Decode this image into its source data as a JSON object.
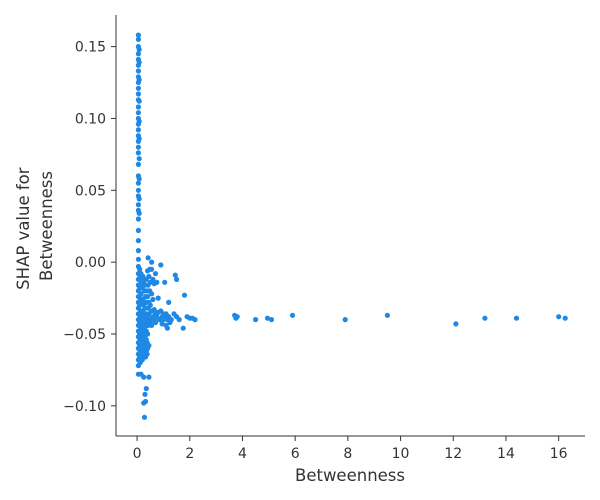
{
  "chart_data": {
    "type": "scatter",
    "title": "",
    "xlabel": "Betweenness",
    "ylabel_lines": [
      "SHAP value for",
      "Betweenness"
    ],
    "xlim": [
      -0.8,
      17.0
    ],
    "ylim": [
      -0.121,
      0.172
    ],
    "xticks": [
      0,
      2,
      4,
      6,
      8,
      10,
      12,
      14,
      16
    ],
    "yticks": [
      -0.1,
      -0.05,
      0.0,
      0.05,
      0.1,
      0.15
    ],
    "ytick_labels": [
      "−0.10",
      "−0.05",
      "0.00",
      "0.05",
      "0.10",
      "0.15"
    ],
    "grid": false,
    "spines": [
      "left",
      "bottom"
    ],
    "point_color": "#1e88e5",
    "points": [
      [
        0.05,
        0.158
      ],
      [
        0.05,
        0.155
      ],
      [
        0.05,
        0.15
      ],
      [
        0.05,
        0.145
      ],
      [
        0.05,
        0.141
      ],
      [
        0.05,
        0.137
      ],
      [
        0.05,
        0.133
      ],
      [
        0.05,
        0.129
      ],
      [
        0.05,
        0.125
      ],
      [
        0.05,
        0.121
      ],
      [
        0.05,
        0.117
      ],
      [
        0.05,
        0.113
      ],
      [
        0.05,
        0.108
      ],
      [
        0.05,
        0.104
      ],
      [
        0.05,
        0.1
      ],
      [
        0.05,
        0.096
      ],
      [
        0.05,
        0.092
      ],
      [
        0.05,
        0.088
      ],
      [
        0.05,
        0.084
      ],
      [
        0.05,
        0.08
      ],
      [
        0.05,
        0.076
      ],
      [
        0.05,
        0.068
      ],
      [
        0.05,
        0.06
      ],
      [
        0.05,
        0.055
      ],
      [
        0.05,
        0.05
      ],
      [
        0.05,
        0.046
      ],
      [
        0.05,
        0.04
      ],
      [
        0.05,
        0.036
      ],
      [
        0.05,
        0.03
      ],
      [
        0.05,
        0.022
      ],
      [
        0.05,
        0.015
      ],
      [
        0.05,
        0.008
      ],
      [
        0.08,
        0.148
      ],
      [
        0.08,
        0.139
      ],
      [
        0.08,
        0.127
      ],
      [
        0.08,
        0.112
      ],
      [
        0.08,
        0.098
      ],
      [
        0.08,
        0.086
      ],
      [
        0.08,
        0.072
      ],
      [
        0.08,
        0.058
      ],
      [
        0.08,
        0.044
      ],
      [
        0.08,
        0.034
      ],
      [
        0.05,
        0.002
      ],
      [
        0.05,
        -0.003
      ],
      [
        0.05,
        -0.008
      ],
      [
        0.05,
        -0.012
      ],
      [
        0.05,
        -0.016
      ],
      [
        0.05,
        -0.02
      ],
      [
        0.05,
        -0.024
      ],
      [
        0.05,
        -0.028
      ],
      [
        0.05,
        -0.032
      ],
      [
        0.05,
        -0.036
      ],
      [
        0.05,
        -0.04
      ],
      [
        0.05,
        -0.044
      ],
      [
        0.05,
        -0.048
      ],
      [
        0.05,
        -0.052
      ],
      [
        0.05,
        -0.056
      ],
      [
        0.05,
        -0.06
      ],
      [
        0.05,
        -0.064
      ],
      [
        0.05,
        -0.068
      ],
      [
        0.05,
        -0.072
      ],
      [
        0.05,
        -0.078
      ],
      [
        0.1,
        -0.005
      ],
      [
        0.1,
        -0.018
      ],
      [
        0.1,
        -0.03
      ],
      [
        0.1,
        -0.042
      ],
      [
        0.1,
        -0.05
      ],
      [
        0.1,
        -0.058
      ],
      [
        0.1,
        -0.066
      ],
      [
        0.12,
        -0.01
      ],
      [
        0.12,
        -0.025
      ],
      [
        0.12,
        -0.038
      ],
      [
        0.12,
        -0.054
      ],
      [
        0.12,
        -0.062
      ],
      [
        0.12,
        -0.07
      ],
      [
        0.15,
        -0.008
      ],
      [
        0.15,
        -0.015
      ],
      [
        0.15,
        -0.022
      ],
      [
        0.15,
        -0.034
      ],
      [
        0.15,
        -0.046
      ],
      [
        0.15,
        -0.052
      ],
      [
        0.15,
        -0.06
      ],
      [
        0.15,
        -0.067
      ],
      [
        0.15,
        -0.078
      ],
      [
        0.18,
        -0.012
      ],
      [
        0.18,
        -0.028
      ],
      [
        0.18,
        -0.036
      ],
      [
        0.18,
        -0.044
      ],
      [
        0.18,
        -0.056
      ],
      [
        0.18,
        -0.064
      ],
      [
        0.2,
        -0.018
      ],
      [
        0.2,
        -0.04
      ],
      [
        0.2,
        -0.048
      ],
      [
        0.2,
        -0.058
      ],
      [
        0.2,
        -0.068
      ],
      [
        0.22,
        -0.01
      ],
      [
        0.22,
        -0.026
      ],
      [
        0.22,
        -0.034
      ],
      [
        0.22,
        -0.054
      ],
      [
        0.22,
        -0.063
      ],
      [
        0.25,
        -0.014
      ],
      [
        0.25,
        -0.03
      ],
      [
        0.25,
        -0.042
      ],
      [
        0.25,
        -0.05
      ],
      [
        0.25,
        -0.06
      ],
      [
        0.25,
        -0.066
      ],
      [
        0.25,
        -0.08
      ],
      [
        0.25,
        -0.098
      ],
      [
        0.28,
        -0.02
      ],
      [
        0.28,
        -0.038
      ],
      [
        0.28,
        -0.046
      ],
      [
        0.28,
        -0.056
      ],
      [
        0.28,
        -0.108
      ],
      [
        0.3,
        -0.016
      ],
      [
        0.3,
        -0.032
      ],
      [
        0.3,
        -0.044
      ],
      [
        0.3,
        -0.052
      ],
      [
        0.3,
        -0.062
      ],
      [
        0.3,
        -0.092
      ],
      [
        0.32,
        -0.024
      ],
      [
        0.32,
        -0.04
      ],
      [
        0.32,
        -0.058
      ],
      [
        0.32,
        -0.066
      ],
      [
        0.32,
        -0.097
      ],
      [
        0.35,
        -0.012
      ],
      [
        0.35,
        -0.028
      ],
      [
        0.35,
        -0.036
      ],
      [
        0.35,
        -0.048
      ],
      [
        0.35,
        -0.054
      ],
      [
        0.35,
        -0.062
      ],
      [
        0.35,
        -0.088
      ],
      [
        0.38,
        -0.02
      ],
      [
        0.38,
        -0.042
      ],
      [
        0.38,
        -0.056
      ],
      [
        0.38,
        -0.064
      ],
      [
        0.4,
        -0.006
      ],
      [
        0.4,
        -0.024
      ],
      [
        0.4,
        -0.038
      ],
      [
        0.4,
        -0.05
      ],
      [
        0.4,
        -0.06
      ],
      [
        0.42,
        0.003
      ],
      [
        0.42,
        -0.016
      ],
      [
        0.42,
        -0.032
      ],
      [
        0.42,
        -0.044
      ],
      [
        0.45,
        -0.01
      ],
      [
        0.45,
        -0.028
      ],
      [
        0.45,
        -0.036
      ],
      [
        0.45,
        -0.058
      ],
      [
        0.45,
        -0.08
      ],
      [
        0.48,
        -0.005
      ],
      [
        0.48,
        -0.02
      ],
      [
        0.48,
        -0.04
      ],
      [
        0.5,
        -0.014
      ],
      [
        0.5,
        -0.03
      ],
      [
        0.5,
        -0.042
      ],
      [
        0.55,
        0.0
      ],
      [
        0.55,
        -0.005
      ],
      [
        0.55,
        -0.022
      ],
      [
        0.55,
        -0.034
      ],
      [
        0.55,
        -0.044
      ],
      [
        0.6,
        -0.012
      ],
      [
        0.6,
        -0.026
      ],
      [
        0.6,
        -0.038
      ],
      [
        0.65,
        -0.015
      ],
      [
        0.65,
        -0.033
      ],
      [
        0.65,
        -0.04
      ],
      [
        0.7,
        -0.008
      ],
      [
        0.7,
        -0.036
      ],
      [
        0.7,
        -0.042
      ],
      [
        0.75,
        -0.014
      ],
      [
        0.75,
        -0.038
      ],
      [
        0.8,
        -0.025
      ],
      [
        0.8,
        -0.035
      ],
      [
        0.85,
        -0.04
      ],
      [
        0.9,
        -0.002
      ],
      [
        0.9,
        -0.034
      ],
      [
        0.95,
        -0.038
      ],
      [
        0.95,
        -0.043
      ],
      [
        1.0,
        -0.036
      ],
      [
        1.0,
        -0.04
      ],
      [
        1.05,
        -0.014
      ],
      [
        1.05,
        -0.038
      ],
      [
        1.1,
        -0.044
      ],
      [
        1.1,
        -0.036
      ],
      [
        1.15,
        -0.04
      ],
      [
        1.15,
        -0.046
      ],
      [
        1.2,
        -0.028
      ],
      [
        1.2,
        -0.038
      ],
      [
        1.25,
        -0.042
      ],
      [
        1.3,
        -0.04
      ],
      [
        1.4,
        -0.036
      ],
      [
        1.45,
        -0.009
      ],
      [
        1.5,
        -0.012
      ],
      [
        1.5,
        -0.038
      ],
      [
        1.6,
        -0.04
      ],
      [
        1.75,
        -0.046
      ],
      [
        1.8,
        -0.023
      ],
      [
        1.9,
        -0.038
      ],
      [
        2.0,
        -0.039
      ],
      [
        2.1,
        -0.039
      ],
      [
        2.2,
        -0.04
      ],
      [
        3.7,
        -0.037
      ],
      [
        3.75,
        -0.039
      ],
      [
        3.8,
        -0.038
      ],
      [
        4.5,
        -0.04
      ],
      [
        4.95,
        -0.039
      ],
      [
        5.1,
        -0.04
      ],
      [
        5.9,
        -0.037
      ],
      [
        7.9,
        -0.04
      ],
      [
        9.5,
        -0.037
      ],
      [
        12.1,
        -0.043
      ],
      [
        13.2,
        -0.039
      ],
      [
        14.4,
        -0.039
      ],
      [
        16.0,
        -0.038
      ],
      [
        16.25,
        -0.039
      ]
    ]
  }
}
